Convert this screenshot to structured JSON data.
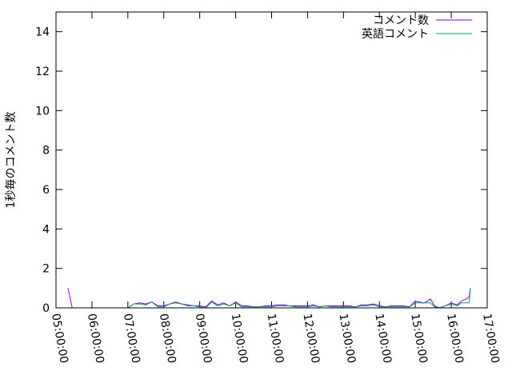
{
  "chart_data": {
    "type": "line",
    "title": "",
    "xlabel": "",
    "ylabel": "1秒毎のコメント数",
    "xlim": [
      "05:00:00",
      "17:00:00"
    ],
    "ylim": [
      0,
      15
    ],
    "x_ticks": [
      "05:00:00",
      "06:00:00",
      "07:00:00",
      "08:00:00",
      "09:00:00",
      "10:00:00",
      "11:00:00",
      "12:00:00",
      "13:00:00",
      "14:00:00",
      "15:00:00",
      "16:00:00",
      "17:00:00"
    ],
    "y_ticks": [
      "0",
      "2",
      "4",
      "6",
      "8",
      "10",
      "12",
      "14"
    ],
    "grid": false,
    "legend_placement": "top-right",
    "series": [
      {
        "name": "コメント数",
        "color": "#9400d3",
        "segments": [
          {
            "x": [
              "05:20",
              "05:27"
            ],
            "y": [
              1.0,
              0
            ]
          },
          {
            "x": [
              "07:00",
              "07:10",
              "07:20",
              "07:30",
              "07:40",
              "07:50",
              "08:00",
              "08:10",
              "08:20",
              "08:30",
              "08:40",
              "08:50",
              "09:00",
              "09:10",
              "09:20",
              "09:30",
              "09:40",
              "09:50",
              "10:00",
              "10:10",
              "10:20",
              "10:30",
              "10:40",
              "10:50",
              "11:00",
              "11:10",
              "11:20",
              "11:30",
              "11:40",
              "11:50",
              "12:00",
              "12:10",
              "12:20",
              "12:30",
              "12:40",
              "12:50",
              "13:00",
              "13:10",
              "13:20",
              "13:30",
              "13:40",
              "13:50",
              "14:00",
              "14:10",
              "14:20",
              "14:30",
              "14:40",
              "14:50",
              "15:00",
              "15:05",
              "15:15",
              "15:25",
              "15:32",
              "15:40",
              "15:50",
              "16:00",
              "16:10",
              "16:17",
              "16:25",
              "16:30",
              "16:32"
            ],
            "y": [
              0,
              0.2,
              0.25,
              0.2,
              0.3,
              0.1,
              0.1,
              0.2,
              0.3,
              0.2,
              0.15,
              0.1,
              0.1,
              0.05,
              0.35,
              0.15,
              0.25,
              0.1,
              0.3,
              0.1,
              0.1,
              0.05,
              0.05,
              0.1,
              0.1,
              0.15,
              0.15,
              0.1,
              0.1,
              0.1,
              0.1,
              0.15,
              0.05,
              0.1,
              0.1,
              0.1,
              0.1,
              0.1,
              0.05,
              0.15,
              0.15,
              0.2,
              0.1,
              0.05,
              0.1,
              0.1,
              0.1,
              0.05,
              0.35,
              0.3,
              0.25,
              0.45,
              0.1,
              0.0,
              0.1,
              0.25,
              0.15,
              0.35,
              0.45,
              0.55,
              1.0
            ]
          }
        ]
      },
      {
        "name": "英語コメント",
        "color": "#009e73",
        "segments": [
          {
            "x": [
              "07:00",
              "07:10",
              "07:20",
              "07:30",
              "07:40",
              "07:50",
              "08:00",
              "08:10",
              "08:20",
              "08:30",
              "08:40",
              "08:50",
              "09:00",
              "09:10",
              "09:20",
              "09:30",
              "09:40",
              "09:50",
              "10:00",
              "10:10",
              "10:20",
              "10:30",
              "10:40",
              "10:50",
              "11:00",
              "11:10",
              "11:20",
              "11:30",
              "11:40",
              "11:50",
              "12:00",
              "12:10",
              "12:20",
              "12:30",
              "12:40",
              "12:50",
              "13:00",
              "13:10",
              "13:20",
              "13:30",
              "13:40",
              "13:50",
              "14:00",
              "14:10",
              "14:20",
              "14:30",
              "14:40",
              "14:50",
              "15:00",
              "15:05",
              "15:15",
              "15:25",
              "15:32",
              "15:40",
              "15:50",
              "16:00",
              "16:10",
              "16:17",
              "16:25",
              "16:30",
              "16:32"
            ],
            "y": [
              0,
              0.2,
              0.2,
              0.15,
              0.3,
              0.05,
              0.05,
              0.2,
              0.25,
              0.2,
              0.1,
              0.1,
              0.05,
              0.0,
              0.3,
              0.1,
              0.2,
              0.1,
              0.25,
              0.05,
              0.05,
              0.05,
              0.05,
              0.05,
              0.05,
              0.1,
              0.1,
              0.1,
              0.05,
              0.05,
              0.05,
              0.1,
              0.05,
              0.1,
              0.05,
              0.05,
              0.05,
              0.05,
              0.05,
              0.1,
              0.1,
              0.15,
              0.05,
              0.05,
              0.05,
              0.05,
              0.05,
              0.05,
              0.25,
              0.25,
              0.25,
              0.25,
              0.05,
              0.0,
              0.1,
              0.2,
              0.1,
              0.25,
              0.25,
              0.25,
              1.0
            ]
          }
        ]
      }
    ]
  }
}
